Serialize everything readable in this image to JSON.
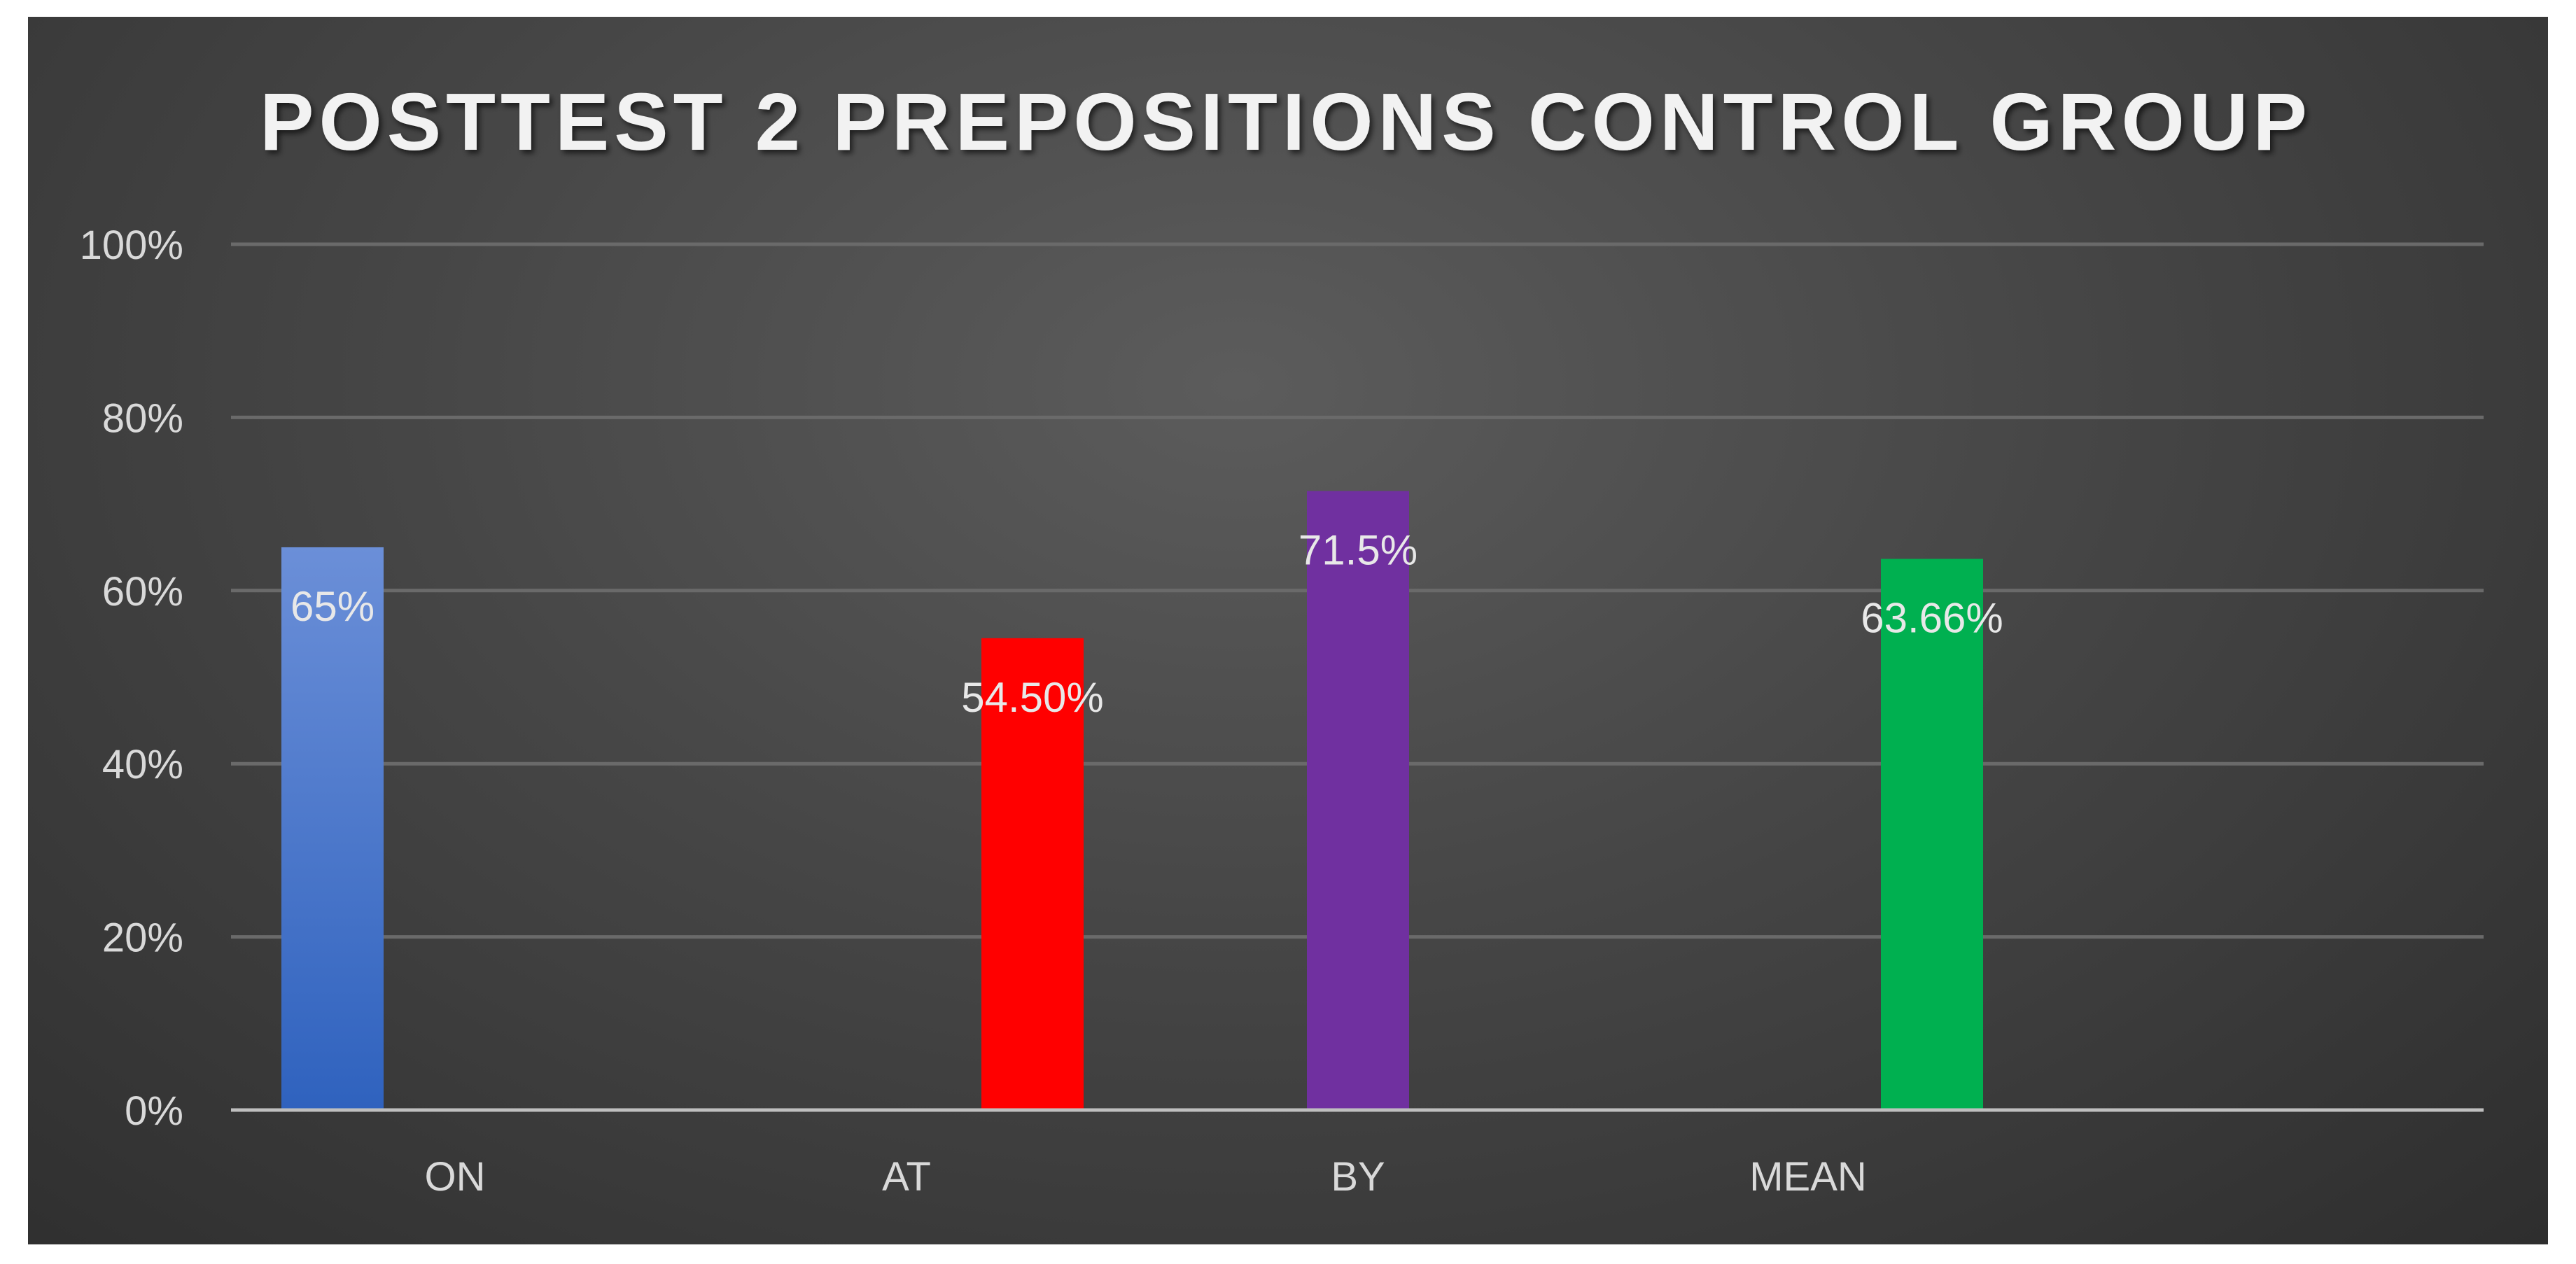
{
  "chart_data": {
    "type": "bar",
    "title": "POSTTEST 2 PREPOSITIONS CONTROL GROUP",
    "xlabel": "",
    "ylabel": "",
    "categories": [
      "ON",
      "AT",
      "BY",
      "MEAN"
    ],
    "values": [
      65,
      54.5,
      71.5,
      63.66
    ],
    "data_labels": [
      "65%",
      "54.50%",
      "71.5%",
      "63.66%"
    ],
    "colors": [
      "#4472c4",
      "#ff0000",
      "#7030a0",
      "#00b050"
    ],
    "ylim": [
      0,
      100
    ],
    "yticks": [
      0,
      20,
      40,
      60,
      80,
      100
    ],
    "ytick_labels": [
      "0%",
      "20%",
      "40%",
      "60%",
      "80%",
      "100%"
    ],
    "grid": true,
    "legend": "none"
  }
}
